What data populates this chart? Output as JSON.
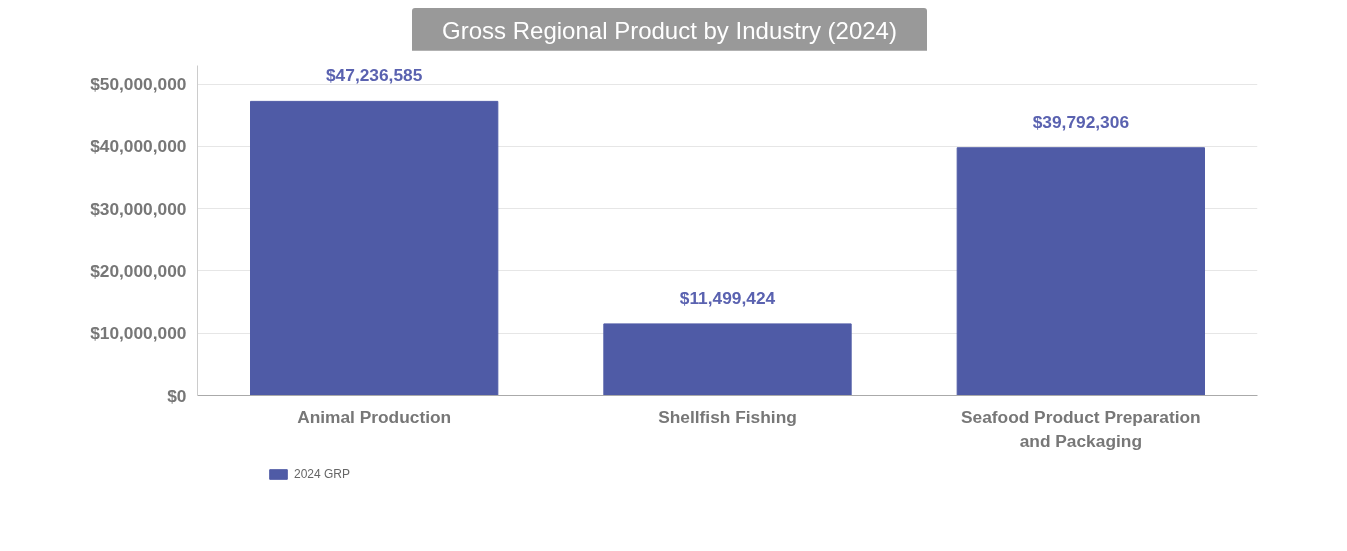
{
  "chart_data": {
    "type": "bar",
    "title": "Gross Regional Product by Industry (2024)",
    "categories": [
      "Animal Production",
      "Shellfish Fishing",
      "Seafood Product Preparation and Packaging"
    ],
    "series": [
      {
        "name": "2024 GRP",
        "color": "#4f5ba6",
        "values": [
          47236585,
          11499424,
          39792306
        ],
        "value_labels": [
          "$47,236,585",
          "$11,499,424",
          "$39,792,306"
        ]
      }
    ],
    "ylim": [
      0,
      53000000
    ],
    "yticks": [
      {
        "value": 0,
        "label": "$0"
      },
      {
        "value": 10000000,
        "label": "$10,000,000"
      },
      {
        "value": 20000000,
        "label": "$20,000,000"
      },
      {
        "value": 30000000,
        "label": "$30,000,000"
      },
      {
        "value": 40000000,
        "label": "$40,000,000"
      },
      {
        "value": 50000000,
        "label": "$50,000,000"
      }
    ],
    "grid": "y",
    "legend": "bottom left"
  }
}
